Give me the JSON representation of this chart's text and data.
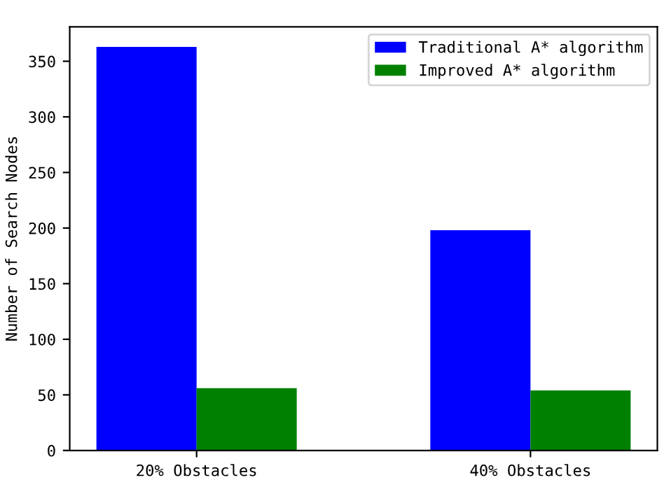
{
  "chart_data": {
    "type": "bar",
    "ylabel": "Number of Search Nodes",
    "categories": [
      "20% Obstacles",
      "40% Obstacles"
    ],
    "series": [
      {
        "name": "Traditional A* algorithm",
        "color": "#0000ff",
        "values": [
          363,
          198
        ]
      },
      {
        "name": "Improved A* algorithm",
        "color": "#008000",
        "values": [
          56,
          54
        ]
      }
    ],
    "ylim": [
      0,
      381
    ],
    "yticks": [
      0,
      50,
      100,
      150,
      200,
      250,
      300,
      350
    ],
    "legend": "top right",
    "grid": false
  }
}
